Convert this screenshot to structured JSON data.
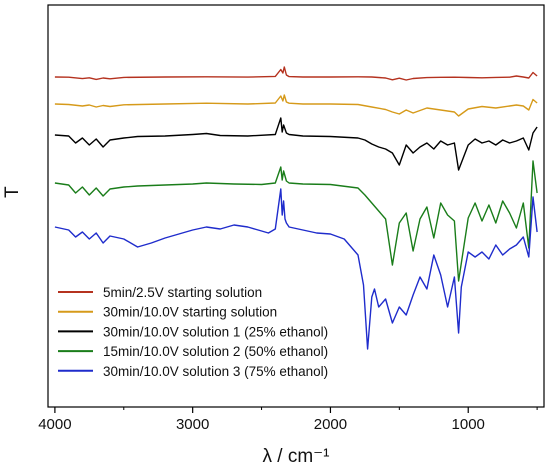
{
  "chart_data": {
    "type": "line",
    "xlabel": "λ / cm⁻¹",
    "ylabel": "T",
    "xlim": [
      4050,
      450
    ],
    "x_reversed": true,
    "x_ticks": [
      4000,
      3000,
      2000,
      1000
    ],
    "y_ticks_shown": false,
    "grid": false,
    "legend_position": "bottom-left",
    "series": [
      {
        "name": "5min/2.5V starting solution",
        "color": "#b5321f",
        "offset": 0,
        "x": [
          4000,
          3900,
          3800,
          3750,
          3700,
          3650,
          3600,
          3500,
          3200,
          2900,
          2600,
          2400,
          2360,
          2345,
          2335,
          2320,
          2300,
          2200,
          2000,
          1800,
          1700,
          1600,
          1550,
          1500,
          1450,
          1400,
          1300,
          1200,
          1100,
          1000,
          900,
          800,
          700,
          650,
          600,
          560,
          530,
          500
        ],
        "y": [
          0.0,
          -0.2,
          -1.6,
          -0.8,
          -2.4,
          -1.0,
          -1.8,
          -0.4,
          0.0,
          0.2,
          -0.1,
          0.6,
          7.5,
          4.0,
          10.0,
          2.0,
          0.4,
          0.0,
          0.0,
          0.2,
          0.0,
          -1.0,
          -2.8,
          -1.2,
          -3.0,
          -1.5,
          -0.6,
          -0.3,
          -0.2,
          -0.5,
          -0.8,
          -0.4,
          -0.2,
          1.0,
          0.0,
          -1.0,
          4.5,
          1.0
        ]
      },
      {
        "name": "30min/10.0V starting solution",
        "color": "#d69a1a",
        "offset": 27,
        "x": [
          4000,
          3900,
          3800,
          3750,
          3700,
          3650,
          3600,
          3500,
          3200,
          2900,
          2600,
          2400,
          2360,
          2345,
          2335,
          2320,
          2300,
          2200,
          2000,
          1800,
          1700,
          1600,
          1550,
          1500,
          1450,
          1400,
          1300,
          1200,
          1100,
          1070,
          1000,
          900,
          800,
          700,
          650,
          600,
          560,
          530,
          500
        ],
        "y": [
          0.0,
          -0.5,
          -2.0,
          -1.0,
          -3.0,
          -1.5,
          -2.5,
          -0.8,
          0.0,
          0.8,
          0.0,
          1.0,
          8.0,
          3.0,
          9.0,
          2.0,
          0.8,
          0.0,
          0.0,
          -0.5,
          -3.0,
          -5.5,
          -8.0,
          -10.0,
          -6.0,
          -9.0,
          -4.0,
          -6.0,
          -8.0,
          -12.0,
          -5.0,
          -2.5,
          -4.0,
          -2.0,
          -1.0,
          -2.0,
          -6.0,
          4.5,
          1.0
        ]
      },
      {
        "name": "30min/10.0V solution 1 (25% ethanol)",
        "color": "#000000",
        "offset": 58,
        "x": [
          4000,
          3900,
          3850,
          3800,
          3750,
          3700,
          3650,
          3600,
          3500,
          3400,
          3200,
          3000,
          2900,
          2800,
          2600,
          2400,
          2360,
          2350,
          2340,
          2320,
          2300,
          2200,
          2000,
          1800,
          1750,
          1700,
          1650,
          1600,
          1550,
          1500,
          1450,
          1400,
          1350,
          1300,
          1250,
          1200,
          1150,
          1100,
          1070,
          1000,
          950,
          900,
          850,
          800,
          750,
          700,
          650,
          600,
          560,
          530,
          500
        ],
        "y": [
          0.0,
          -1.0,
          -8.0,
          -3.0,
          -10.0,
          -4.0,
          -12.0,
          -5.0,
          -3.0,
          -1.5,
          -1.0,
          0.5,
          1.5,
          -0.5,
          -1.0,
          0.5,
          17.0,
          3.0,
          10.0,
          2.0,
          0.5,
          -1.0,
          -1.5,
          -3.0,
          -5.0,
          -9.0,
          -12.0,
          -14.0,
          -18.0,
          -30.0,
          -10.0,
          -18.0,
          -12.0,
          -8.0,
          -14.0,
          -6.0,
          -10.0,
          -8.0,
          -35.0,
          -10.0,
          -4.0,
          -8.0,
          -6.0,
          -10.0,
          -5.0,
          -8.0,
          -6.0,
          -3.0,
          -15.0,
          2.0,
          8.0
        ]
      },
      {
        "name": "15min/10.0V solution 2 (50% ethanol)",
        "color": "#1a7d1a",
        "offset": 106,
        "x": [
          4000,
          3900,
          3850,
          3800,
          3750,
          3700,
          3650,
          3600,
          3500,
          3400,
          3200,
          3000,
          2900,
          2700,
          2500,
          2400,
          2360,
          2350,
          2340,
          2320,
          2300,
          2200,
          2000,
          1800,
          1750,
          1700,
          1650,
          1600,
          1550,
          1500,
          1450,
          1400,
          1350,
          1300,
          1250,
          1200,
          1150,
          1100,
          1070,
          1000,
          950,
          900,
          850,
          800,
          750,
          700,
          650,
          600,
          560,
          530,
          500
        ],
        "y": [
          0.0,
          -2.0,
          -10.0,
          -4.0,
          -12.0,
          -5.0,
          -13.0,
          -6.0,
          -4.0,
          -3.0,
          -2.0,
          -1.0,
          0.0,
          -1.0,
          -1.5,
          0.0,
          16.0,
          3.0,
          12.0,
          2.0,
          0.0,
          -1.0,
          -1.5,
          -5.0,
          -12.0,
          -20.0,
          -28.0,
          -36.0,
          -82.0,
          -40.0,
          -30.0,
          -68.0,
          -36.0,
          -24.0,
          -55.0,
          -20.0,
          -32.0,
          -38.0,
          -98.0,
          -35.0,
          -20.0,
          -38.0,
          -22.0,
          -40.0,
          -18.0,
          -30.0,
          -45.0,
          -20.0,
          -65.0,
          22.0,
          -10.0
        ]
      },
      {
        "name": "30min/10.0V solution 3 (75% ethanol)",
        "color": "#1f2ccc",
        "offset": 150,
        "x": [
          4000,
          3900,
          3850,
          3800,
          3750,
          3700,
          3650,
          3600,
          3500,
          3400,
          3300,
          3200,
          3100,
          3000,
          2900,
          2800,
          2700,
          2600,
          2500,
          2450,
          2400,
          2360,
          2350,
          2340,
          2330,
          2320,
          2300,
          2200,
          2100,
          2000,
          1900,
          1800,
          1760,
          1730,
          1700,
          1680,
          1650,
          1600,
          1550,
          1500,
          1450,
          1400,
          1350,
          1300,
          1250,
          1200,
          1150,
          1100,
          1070,
          1050,
          1000,
          950,
          900,
          850,
          800,
          750,
          700,
          650,
          600,
          560,
          530,
          500
        ],
        "y": [
          0.0,
          -3.0,
          -10.0,
          -5.0,
          -12.0,
          -6.0,
          -16.0,
          -9.0,
          -12.0,
          -20.0,
          -16.0,
          -11.0,
          -7.0,
          -3.0,
          0.0,
          -2.0,
          2.0,
          0.0,
          -4.0,
          -6.0,
          -2.0,
          38.0,
          12.0,
          26.0,
          8.0,
          4.0,
          0.0,
          -3.0,
          -6.0,
          -7.0,
          -12.0,
          -28.0,
          -58.0,
          -122.0,
          -70.0,
          -62.0,
          -80.0,
          -72.0,
          -96.0,
          -80.0,
          -88.0,
          -68.0,
          -50.0,
          -62.0,
          -28.0,
          -48.0,
          -80.0,
          -50.0,
          -106.0,
          -60.0,
          -25.0,
          -30.0,
          -25.0,
          -32.0,
          -18.0,
          -28.0,
          -22.0,
          -18.0,
          -10.0,
          -30.0,
          30.0,
          -5.0
        ]
      }
    ]
  }
}
